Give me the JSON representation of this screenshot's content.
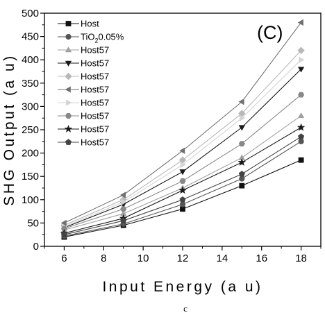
{
  "chart_data": {
    "type": "line",
    "panel_label": "(C)",
    "caption": "c",
    "xlabel": "Input Energy (a u)",
    "ylabel": "SHG Output (a u)",
    "xlim": [
      5,
      19
    ],
    "ylim": [
      0,
      500
    ],
    "xticks": [
      "6",
      "8",
      "10",
      "12",
      "14",
      "16",
      "18"
    ],
    "yticks": [
      "0",
      "50",
      "100",
      "150",
      "200",
      "250",
      "300",
      "350",
      "400",
      "450",
      "500"
    ],
    "x": [
      6,
      9,
      12,
      15,
      18
    ],
    "legend_position": "top-left",
    "grid": false,
    "series": [
      {
        "name": "Host",
        "legend_main": "Host",
        "legend_sub": "",
        "legend_tail": "",
        "marker": "square",
        "color": "#111111",
        "values": [
          20,
          45,
          80,
          130,
          185
        ]
      },
      {
        "name": "TiO2 0.05%",
        "legend_main": "TiO",
        "legend_sub": "2",
        "legend_tail": "0.05%",
        "marker": "circle",
        "color": "#555555",
        "values": [
          22,
          48,
          90,
          145,
          225
        ]
      },
      {
        "name": "Host57",
        "legend_main": "Host57",
        "legend_sub": "",
        "legend_tail": "",
        "marker": "triangle-up",
        "color": "#a0a0a0",
        "values": [
          35,
          70,
          125,
          190,
          280
        ]
      },
      {
        "name": "Host57",
        "legend_main": "Host57",
        "legend_sub": "",
        "legend_tail": "",
        "marker": "triangle-down",
        "color": "#1a1a1a",
        "values": [
          40,
          90,
          160,
          255,
          380
        ]
      },
      {
        "name": "Host57",
        "legend_main": "Host57",
        "legend_sub": "",
        "legend_tail": "",
        "marker": "diamond",
        "color": "#b8b8b8",
        "values": [
          45,
          100,
          185,
          285,
          420
        ]
      },
      {
        "name": "Host57",
        "legend_main": "Host57",
        "legend_sub": "",
        "legend_tail": "",
        "marker": "triangle-left",
        "color": "#707070",
        "values": [
          50,
          110,
          205,
          310,
          480
        ]
      },
      {
        "name": "Host57",
        "legend_main": "Host57",
        "legend_sub": "",
        "legend_tail": "",
        "marker": "triangle-right",
        "color": "#d4d4d4",
        "values": [
          42,
          95,
          175,
          275,
          400
        ]
      },
      {
        "name": "Host57",
        "legend_main": "Host57",
        "legend_sub": "",
        "legend_tail": "",
        "marker": "hexagon",
        "color": "#888888",
        "values": [
          38,
          80,
          140,
          220,
          325
        ]
      },
      {
        "name": "Host57",
        "legend_main": "Host57",
        "legend_sub": "",
        "legend_tail": "",
        "marker": "star",
        "color": "#1a1a1a",
        "values": [
          28,
          60,
          120,
          180,
          255
        ]
      },
      {
        "name": "Host57",
        "legend_main": "Host57",
        "legend_sub": "",
        "legend_tail": "",
        "marker": "pentagon",
        "color": "#444444",
        "values": [
          25,
          55,
          100,
          155,
          235
        ]
      }
    ]
  }
}
